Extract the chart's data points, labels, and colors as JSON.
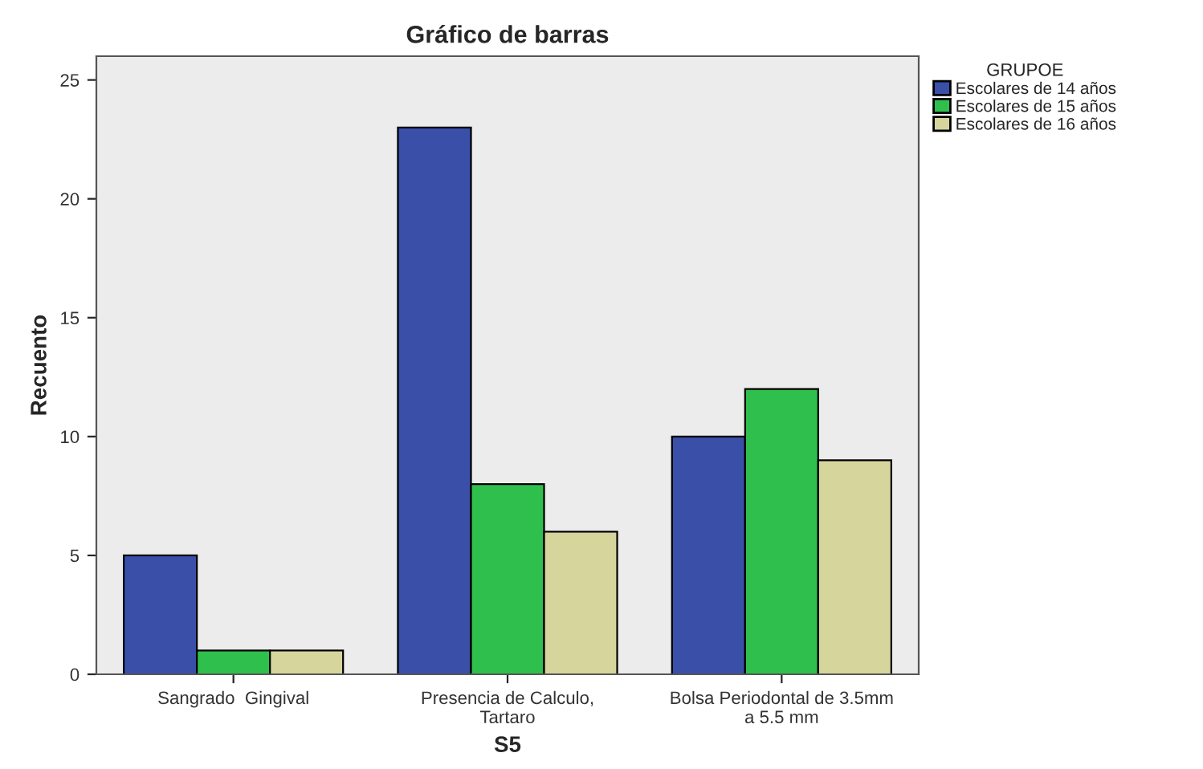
{
  "chart_data": {
    "type": "bar",
    "title": "Gráfico de barras",
    "xlabel": "S5",
    "ylabel": "Recuento",
    "legend_title": "GRUPOE",
    "categories": [
      "Sangrado  Gingival",
      "Presencia de Calculo,\nTartaro",
      "Bolsa Periodontal de 3.5mm\na 5.5 mm"
    ],
    "series": [
      {
        "name": "Escolares de 14 años",
        "color": "#3a4fa8",
        "values": [
          5,
          23,
          10
        ]
      },
      {
        "name": "Escolares de 15 años",
        "color": "#2fbf4c",
        "values": [
          1,
          8,
          12
        ]
      },
      {
        "name": "Escolares de 16 años",
        "color": "#d6d59c",
        "values": [
          1,
          6,
          9
        ]
      }
    ],
    "ylim": [
      0,
      26
    ],
    "yticks": [
      0,
      5,
      10,
      15,
      20,
      25
    ],
    "grid": false,
    "legend": "top right"
  }
}
